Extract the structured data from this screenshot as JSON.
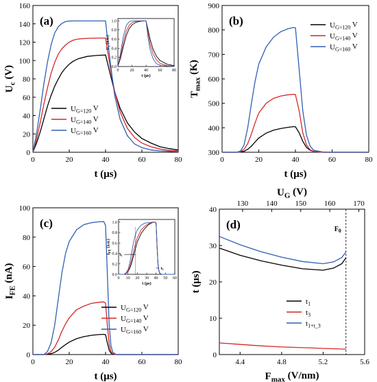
{
  "chart_data": [
    {
      "id": "a",
      "type": "line",
      "panel_label": "(a)",
      "xlabel": "t (μs)",
      "ylabel": "U_c (V)",
      "xlim": [
        0,
        80
      ],
      "ylim": [
        0,
        160
      ],
      "xticks": [
        0,
        20,
        40,
        60,
        80
      ],
      "yticks": [
        0,
        20,
        40,
        60,
        80,
        100,
        120,
        140,
        160
      ],
      "legend_position": "lower-left",
      "series": [
        {
          "name": "U_G=120 V",
          "color": "#000000",
          "x": [
            0,
            2,
            4,
            6,
            8,
            10,
            12,
            14,
            16,
            18,
            20,
            22,
            25,
            30,
            35,
            40,
            41,
            43,
            45,
            48,
            52,
            56,
            60,
            65,
            70,
            75,
            80
          ],
          "y": [
            0,
            10,
            22,
            36,
            50,
            62,
            72,
            80,
            87,
            92,
            96,
            99,
            102,
            104.5,
            105.5,
            106,
            98,
            82,
            66,
            48,
            32,
            22,
            15,
            10,
            6,
            4,
            2.5
          ]
        },
        {
          "name": "U_G=140 V",
          "color": "#d62728",
          "x": [
            0,
            2,
            4,
            6,
            8,
            10,
            12,
            14,
            16,
            18,
            20,
            22,
            25,
            30,
            35,
            40,
            41,
            43,
            45,
            48,
            52,
            56,
            60,
            65,
            70,
            75,
            80
          ],
          "y": [
            0,
            14,
            32,
            52,
            70,
            86,
            98,
            107,
            113,
            117,
            120,
            122,
            123.5,
            124.2,
            124.5,
            124.5,
            112,
            88,
            66,
            44,
            26,
            16,
            10,
            6,
            3.5,
            2,
            1.5
          ]
        },
        {
          "name": "U_G=160 V",
          "color": "#2f5fb3",
          "x": [
            0,
            2,
            4,
            6,
            8,
            10,
            12,
            14,
            16,
            18,
            20,
            22,
            25,
            30,
            35,
            40,
            41,
            43,
            45,
            48,
            52,
            56,
            60,
            65,
            70,
            75,
            80
          ],
          "y": [
            0,
            20,
            46,
            74,
            98,
            117,
            130,
            137,
            140.5,
            142.5,
            143,
            143.2,
            143.2,
            143.2,
            143.2,
            143.2,
            125,
            92,
            62,
            36,
            18,
            9,
            5,
            2.5,
            1.5,
            1,
            0.5
          ]
        }
      ],
      "inset": {
        "xlabel": "t (μs)",
        "ylabel": "U_c (a.u.)",
        "xlim": [
          0,
          80
        ],
        "ylim": [
          0,
          1.05
        ],
        "xticks": [
          0,
          20,
          40,
          60,
          80
        ],
        "yticks": [
          0.0,
          0.2,
          0.4,
          0.6,
          0.8,
          1.0
        ],
        "series": [
          {
            "name": "U_G=120 V",
            "color": "#000000",
            "x": [
              0,
              4,
              8,
              12,
              16,
              20,
              25,
              30,
              35,
              40,
              43,
              46,
              50,
              55,
              60,
              70,
              80
            ],
            "y": [
              0,
              0.2,
              0.45,
              0.68,
              0.83,
              0.91,
              0.96,
              0.985,
              0.995,
              1.0,
              0.8,
              0.58,
              0.38,
              0.22,
              0.13,
              0.05,
              0.02
            ]
          },
          {
            "name": "U_G=140 V",
            "color": "#d62728",
            "x": [
              0,
              4,
              8,
              12,
              16,
              20,
              25,
              30,
              35,
              40,
              43,
              46,
              50,
              55,
              60,
              70,
              80
            ],
            "y": [
              0,
              0.25,
              0.55,
              0.78,
              0.9,
              0.96,
              0.985,
              0.995,
              1.0,
              1.0,
              0.72,
              0.48,
              0.28,
              0.14,
              0.07,
              0.02,
              0.01
            ]
          },
          {
            "name": "U_G=160 V",
            "color": "#2f5fb3",
            "x": [
              0,
              4,
              8,
              12,
              16,
              20,
              25,
              30,
              35,
              40,
              43,
              46,
              50,
              55,
              60,
              70,
              80
            ],
            "y": [
              0,
              0.32,
              0.68,
              0.9,
              0.98,
              1.0,
              1.0,
              1.0,
              1.0,
              1.0,
              0.62,
              0.36,
              0.17,
              0.06,
              0.03,
              0.01,
              0.0
            ]
          }
        ]
      }
    },
    {
      "id": "b",
      "type": "line",
      "panel_label": "(b)",
      "xlabel": "t (μs)",
      "ylabel": "T_max (K)",
      "xlim": [
        0,
        80
      ],
      "ylim": [
        300,
        900
      ],
      "xticks": [
        0,
        20,
        40,
        60,
        80
      ],
      "yticks": [
        300,
        400,
        500,
        600,
        700,
        800,
        900
      ],
      "legend_position": "top-right",
      "series": [
        {
          "name": "U_G=120 V",
          "color": "#000000",
          "x": [
            0,
            8,
            10,
            12,
            14,
            16,
            18,
            20,
            24,
            28,
            32,
            36,
            39,
            40,
            42,
            44,
            46,
            48,
            50,
            55,
            60,
            80
          ],
          "y": [
            300,
            300,
            301,
            304,
            312,
            325,
            342,
            358,
            378,
            390,
            397,
            402,
            405,
            404,
            380,
            345,
            320,
            308,
            303,
            300,
            300,
            300
          ]
        },
        {
          "name": "U_G=140 V",
          "color": "#d62728",
          "x": [
            0,
            8,
            10,
            12,
            14,
            16,
            18,
            20,
            24,
            28,
            32,
            36,
            39,
            40,
            42,
            44,
            46,
            48,
            50,
            55,
            60,
            80
          ],
          "y": [
            300,
            300,
            302,
            312,
            335,
            375,
            420,
            460,
            500,
            520,
            530,
            535,
            537,
            536,
            470,
            380,
            330,
            310,
            303,
            300,
            300,
            300
          ]
        },
        {
          "name": "U_G=160 V",
          "color": "#2f5fb3",
          "x": [
            0,
            8,
            10,
            12,
            14,
            16,
            18,
            20,
            24,
            28,
            32,
            36,
            39,
            40,
            42,
            44,
            46,
            48,
            50,
            55,
            60,
            80
          ],
          "y": [
            300,
            300,
            305,
            330,
            400,
            500,
            590,
            660,
            730,
            770,
            793,
            805,
            810,
            809,
            640,
            470,
            370,
            325,
            308,
            301,
            300,
            300
          ]
        }
      ]
    },
    {
      "id": "c",
      "type": "line",
      "panel_label": "(c)",
      "xlabel": "t (μs)",
      "ylabel": "I_FE (nA)",
      "xlim": [
        0,
        80
      ],
      "ylim": [
        0,
        100
      ],
      "xticks": [
        0,
        20,
        40,
        60,
        80
      ],
      "yticks": [
        0,
        20,
        40,
        60,
        80,
        100
      ],
      "legend_position": "lower-right",
      "series": [
        {
          "name": "U_G=120 V",
          "color": "#000000",
          "x": [
            0,
            6,
            8,
            10,
            12,
            14,
            16,
            18,
            20,
            24,
            28,
            32,
            36,
            39,
            40,
            41,
            42,
            43,
            44,
            46,
            50,
            80
          ],
          "y": [
            0,
            0,
            0.2,
            0.6,
            1.5,
            3,
            5,
            6.8,
            8.5,
            10.8,
            12.2,
            13.1,
            13.6,
            13.8,
            13.5,
            8,
            3,
            1,
            0.3,
            0,
            0,
            0
          ]
        },
        {
          "name": "U_G=140 V",
          "color": "#d62728",
          "x": [
            0,
            6,
            8,
            10,
            12,
            14,
            16,
            18,
            20,
            24,
            28,
            32,
            36,
            39,
            40,
            41,
            42,
            43,
            44,
            46,
            50,
            80
          ],
          "y": [
            0,
            0,
            0.5,
            2,
            5,
            10,
            16,
            21,
            25,
            30.5,
            33,
            34.8,
            35.6,
            35.9,
            35,
            20,
            7,
            2,
            0.5,
            0,
            0,
            0
          ]
        },
        {
          "name": "U_G=160 V",
          "color": "#2f5fb3",
          "x": [
            0,
            6,
            8,
            10,
            12,
            14,
            16,
            18,
            20,
            24,
            28,
            32,
            36,
            39,
            40,
            41,
            42,
            43,
            44,
            46,
            50,
            80
          ],
          "y": [
            0,
            0,
            2,
            8,
            20,
            38,
            56,
            69,
            77,
            85,
            88.5,
            89.8,
            90.4,
            90.6,
            88,
            55,
            20,
            6,
            1.5,
            0,
            0,
            0
          ]
        }
      ],
      "inset": {
        "xlabel": "t (μs)",
        "ylabel": "I_FE (a.u.)",
        "xlim": [
          0,
          60
        ],
        "ylim": [
          0,
          1.05
        ],
        "xticks": [
          0,
          10,
          20,
          30,
          40,
          50,
          60
        ],
        "yticks": [
          0.0,
          0.2,
          0.4,
          0.6,
          0.8,
          1.0
        ],
        "annotations": [
          "t_1",
          "t_3"
        ],
        "series": [
          {
            "name": "U_G=120 V",
            "color": "#000000",
            "x": [
              0,
              6,
              8,
              10,
              12,
              14,
              16,
              18,
              20,
              24,
              28,
              32,
              36,
              39,
              40,
              41,
              42,
              43,
              44,
              46,
              50,
              60
            ],
            "y": [
              0,
              0,
              0.02,
              0.05,
              0.12,
              0.22,
              0.36,
              0.49,
              0.62,
              0.78,
              0.88,
              0.95,
              0.99,
              1.0,
              0.98,
              0.58,
              0.22,
              0.07,
              0.02,
              0,
              0,
              0
            ]
          },
          {
            "name": "U_G=140 V",
            "color": "#d62728",
            "x": [
              0,
              6,
              8,
              10,
              12,
              14,
              16,
              18,
              20,
              24,
              28,
              32,
              36,
              39,
              40,
              41,
              42,
              43,
              44,
              46,
              50,
              60
            ],
            "y": [
              0,
              0,
              0.02,
              0.06,
              0.15,
              0.28,
              0.44,
              0.59,
              0.7,
              0.85,
              0.92,
              0.97,
              0.99,
              1.0,
              0.97,
              0.56,
              0.2,
              0.06,
              0.02,
              0,
              0,
              0
            ]
          },
          {
            "name": "U_G=160 V",
            "color": "#2f5fb3",
            "x": [
              0,
              6,
              8,
              10,
              12,
              14,
              16,
              18,
              20,
              24,
              28,
              32,
              36,
              39,
              40,
              41,
              42,
              43,
              44,
              46,
              50,
              60
            ],
            "y": [
              0,
              0,
              0.03,
              0.09,
              0.22,
              0.42,
              0.62,
              0.76,
              0.85,
              0.94,
              0.98,
              0.99,
              1.0,
              1.0,
              0.97,
              0.6,
              0.22,
              0.07,
              0.02,
              0,
              0,
              0
            ]
          }
        ]
      }
    },
    {
      "id": "d",
      "type": "line",
      "panel_label": "(d)",
      "xlabel": "F_max (V/nm)",
      "ylabel": "t (μs)",
      "xlim": [
        4.2,
        5.6
      ],
      "ylim": [
        0,
        40
      ],
      "xticks": [
        4.4,
        4.8,
        5.2,
        5.6
      ],
      "yticks": [
        0,
        10,
        20,
        30,
        40
      ],
      "top_axis": {
        "label": "U_G (V)",
        "lim": [
          122,
          172
        ],
        "ticks": [
          130,
          140,
          150,
          160,
          170
        ]
      },
      "marker": {
        "label": "F_0",
        "x": 5.42
      },
      "legend_position": "lower-left",
      "series": [
        {
          "name": "t_1",
          "color": "#000000",
          "x": [
            4.2,
            4.4,
            4.6,
            4.8,
            5.0,
            5.2,
            5.3,
            5.38,
            5.42
          ],
          "y": [
            29.3,
            27.3,
            25.8,
            24.6,
            23.6,
            23.2,
            23.8,
            25.0,
            26.6
          ]
        },
        {
          "name": "t_3",
          "color": "#d62728",
          "x": [
            4.2,
            4.4,
            4.6,
            4.8,
            5.0,
            5.2,
            5.42
          ],
          "y": [
            3.2,
            2.8,
            2.4,
            2.1,
            1.9,
            1.7,
            1.5
          ]
        },
        {
          "name": "t_1+t_3",
          "color": "#2f5fb3",
          "x": [
            4.2,
            4.4,
            4.6,
            4.8,
            5.0,
            5.2,
            5.3,
            5.38,
            5.42
          ],
          "y": [
            32.5,
            30.2,
            28.3,
            26.8,
            25.6,
            25.0,
            25.5,
            26.7,
            28.2
          ]
        }
      ]
    }
  ]
}
